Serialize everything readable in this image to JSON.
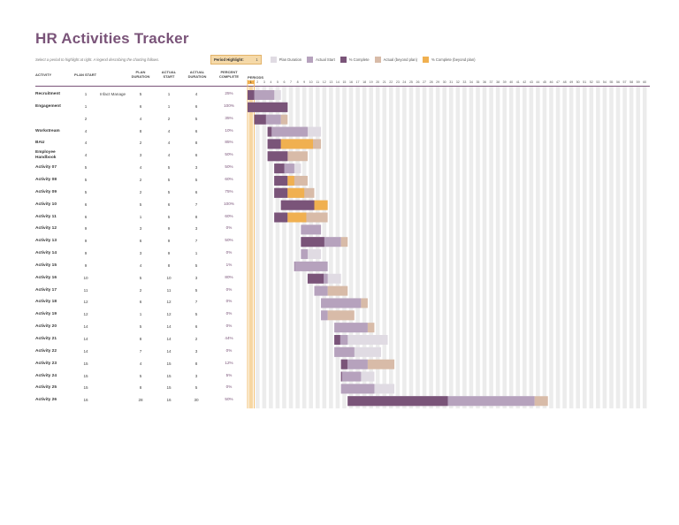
{
  "title": "HR Activities Tracker",
  "subtitle": "Select a period to highlight at right. A legend describing the charting follows.",
  "period_highlight": {
    "label": "Period Highlight:",
    "value": "1"
  },
  "legend": [
    {
      "label": "Plan Duration",
      "color": "#e0dbe3"
    },
    {
      "label": "Actual Start",
      "color": "#b6a2bd"
    },
    {
      "label": "% Complete",
      "color": "#7a5479"
    },
    {
      "label": "Actual (beyond plan)",
      "color": "#d8bba8"
    },
    {
      "label": "% Complete (beyond plan)",
      "color": "#f0b050"
    }
  ],
  "headers": {
    "activity": "ACTIVITY",
    "plan_start": "PLAN START",
    "plan_duration": "PLAN DURATION",
    "actual_start": "ACTUAL START",
    "actual_duration": "ACTUAL DURATION",
    "percent_complete": "PERCENT COMPLETE",
    "periods": "PERIODS"
  },
  "colors": {
    "plan": "#e0dbe3",
    "actual": "#b6a2bd",
    "complete": "#7a5479",
    "beyond": "#d8bba8",
    "complete_beyond": "#f0b050",
    "grid_stripe": "#ececec",
    "highlight": "#f0b050"
  },
  "periods": 60,
  "highlight_period": 1,
  "activities": [
    {
      "name": "Recruitment",
      "plan_start": "1",
      "note": "Infact Manage",
      "plan_duration": "5",
      "actual_start": "1",
      "actual_duration": "4",
      "percent": "25%"
    },
    {
      "name": "Engagement",
      "plan_start": "1",
      "note": "",
      "plan_duration": "6",
      "actual_start": "1",
      "actual_duration": "6",
      "percent": "100%"
    },
    {
      "name": "",
      "plan_start": "2",
      "note": "",
      "plan_duration": "4",
      "actual_start": "2",
      "actual_duration": "5",
      "percent": "35%"
    },
    {
      "name": "Workstream",
      "plan_start": "4",
      "note": "",
      "plan_duration": "8",
      "actual_start": "4",
      "actual_duration": "6",
      "percent": "10%"
    },
    {
      "name": "BAU",
      "plan_start": "4",
      "note": "",
      "plan_duration": "2",
      "actual_start": "4",
      "actual_duration": "8",
      "percent": "85%"
    },
    {
      "name": "Employee Handbook",
      "plan_start": "4",
      "note": "",
      "plan_duration": "3",
      "actual_start": "4",
      "actual_duration": "6",
      "percent": "50%"
    },
    {
      "name": "Activity 07",
      "plan_start": "5",
      "note": "",
      "plan_duration": "4",
      "actual_start": "5",
      "actual_duration": "3",
      "percent": "50%"
    },
    {
      "name": "Activity 08",
      "plan_start": "5",
      "note": "",
      "plan_duration": "2",
      "actual_start": "5",
      "actual_duration": "5",
      "percent": "60%"
    },
    {
      "name": "Activity 09",
      "plan_start": "5",
      "note": "",
      "plan_duration": "2",
      "actual_start": "5",
      "actual_duration": "6",
      "percent": "75%"
    },
    {
      "name": "Activity 10",
      "plan_start": "6",
      "note": "",
      "plan_duration": "5",
      "actual_start": "6",
      "actual_duration": "7",
      "percent": "100%"
    },
    {
      "name": "Activity 11",
      "plan_start": "6",
      "note": "",
      "plan_duration": "1",
      "actual_start": "5",
      "actual_duration": "8",
      "percent": "60%"
    },
    {
      "name": "Activity 12",
      "plan_start": "9",
      "note": "",
      "plan_duration": "3",
      "actual_start": "9",
      "actual_duration": "3",
      "percent": "0%"
    },
    {
      "name": "Activity 13",
      "plan_start": "9",
      "note": "",
      "plan_duration": "6",
      "actual_start": "9",
      "actual_duration": "7",
      "percent": "50%"
    },
    {
      "name": "Activity 14",
      "plan_start": "9",
      "note": "",
      "plan_duration": "3",
      "actual_start": "9",
      "actual_duration": "1",
      "percent": "0%"
    },
    {
      "name": "Activity 15",
      "plan_start": "9",
      "note": "",
      "plan_duration": "4",
      "actual_start": "8",
      "actual_duration": "5",
      "percent": "1%"
    },
    {
      "name": "Activity 16",
      "plan_start": "10",
      "note": "",
      "plan_duration": "5",
      "actual_start": "10",
      "actual_duration": "3",
      "percent": "80%"
    },
    {
      "name": "Activity 17",
      "plan_start": "11",
      "note": "",
      "plan_duration": "2",
      "actual_start": "11",
      "actual_duration": "5",
      "percent": "0%"
    },
    {
      "name": "Activity 18",
      "plan_start": "12",
      "note": "",
      "plan_duration": "6",
      "actual_start": "12",
      "actual_duration": "7",
      "percent": "0%"
    },
    {
      "name": "Activity 19",
      "plan_start": "12",
      "note": "",
      "plan_duration": "1",
      "actual_start": "12",
      "actual_duration": "5",
      "percent": "0%"
    },
    {
      "name": "Activity 20",
      "plan_start": "14",
      "note": "",
      "plan_duration": "5",
      "actual_start": "14",
      "actual_duration": "6",
      "percent": "0%"
    },
    {
      "name": "Activity 21",
      "plan_start": "14",
      "note": "",
      "plan_duration": "8",
      "actual_start": "14",
      "actual_duration": "2",
      "percent": "44%"
    },
    {
      "name": "Activity 22",
      "plan_start": "14",
      "note": "",
      "plan_duration": "7",
      "actual_start": "14",
      "actual_duration": "3",
      "percent": "0%"
    },
    {
      "name": "Activity 23",
      "plan_start": "15",
      "note": "",
      "plan_duration": "4",
      "actual_start": "15",
      "actual_duration": "8",
      "percent": "12%"
    },
    {
      "name": "Activity 24",
      "plan_start": "15",
      "note": "",
      "plan_duration": "5",
      "actual_start": "15",
      "actual_duration": "3",
      "percent": "5%"
    },
    {
      "name": "Activity 25",
      "plan_start": "15",
      "note": "",
      "plan_duration": "8",
      "actual_start": "15",
      "actual_duration": "5",
      "percent": "0%"
    },
    {
      "name": "Activity 26",
      "plan_start": "16",
      "note": "",
      "plan_duration": "28",
      "actual_start": "16",
      "actual_duration": "30",
      "percent": "50%"
    }
  ]
}
